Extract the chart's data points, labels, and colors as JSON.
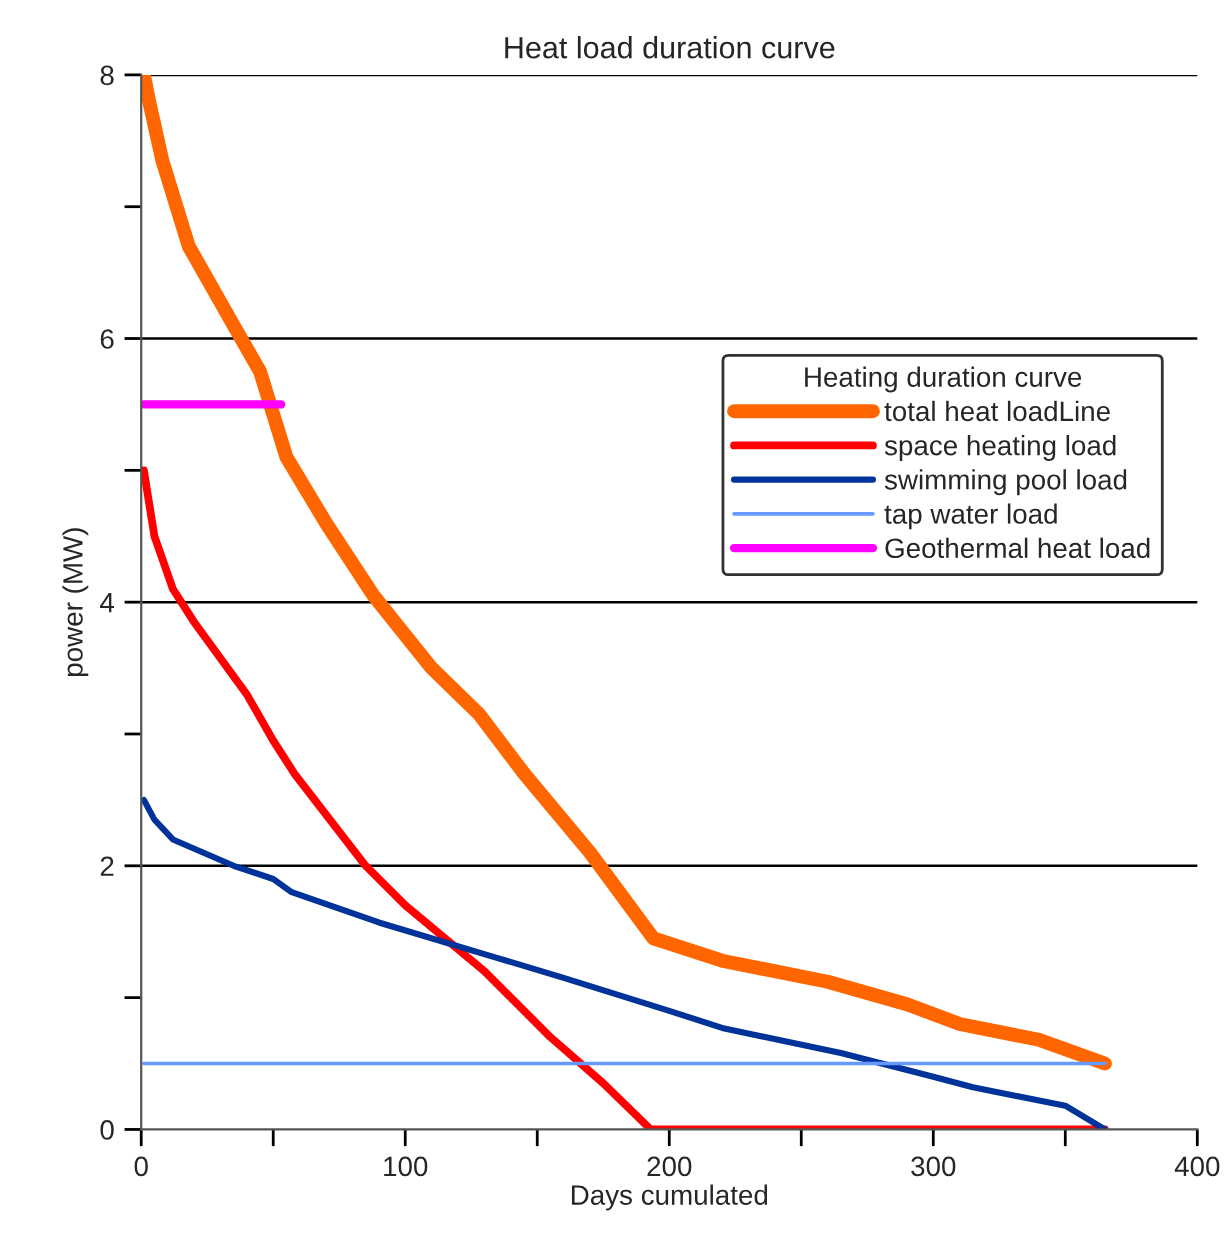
{
  "chart_data": {
    "type": "line",
    "title": "Heat load duration curve",
    "xlabel": "Days cumulated",
    "ylabel": "power (MW)",
    "xlim": [
      0,
      400
    ],
    "xticks": [
      0,
      {
        "value": 50,
        "label": null
      },
      100,
      {
        "value": 150,
        "label": null
      },
      200,
      {
        "value": 250,
        "label": null
      },
      300,
      {
        "value": 350,
        "label": null
      },
      400
    ],
    "ylim": [
      0,
      8
    ],
    "yticks": [
      0,
      {
        "value": 1,
        "label": null
      },
      2,
      {
        "value": 3,
        "label": null
      },
      4,
      {
        "value": 5,
        "label": null
      },
      6,
      {
        "value": 7,
        "label": null
      },
      8
    ],
    "grid": "y",
    "legend": "right",
    "legend_title": "Heating duration curve",
    "marker": "none",
    "line_style": "solid",
    "series": [
      {
        "name": "total heat loadLine",
        "color": "#ff6600",
        "x": [
          1,
          3,
          8,
          18,
          35,
          45,
          55,
          70,
          88,
          110,
          128,
          145,
          170,
          194,
          220,
          260,
          290,
          310,
          340,
          365
        ],
        "values": [
          8.0,
          7.8,
          7.35,
          6.7,
          6.1,
          5.75,
          5.1,
          4.6,
          4.05,
          3.5,
          3.15,
          2.7,
          2.1,
          1.45,
          1.28,
          1.12,
          0.95,
          0.8,
          0.68,
          0.5
        ]
      },
      {
        "name": "space heating load",
        "color": "#ff0000",
        "x": [
          1,
          5,
          12,
          20,
          40,
          50,
          58,
          85,
          100,
          130,
          155,
          175,
          193,
          365
        ],
        "values": [
          5.0,
          4.5,
          4.1,
          3.85,
          3.3,
          2.95,
          2.7,
          2.0,
          1.7,
          1.2,
          0.7,
          0.35,
          0.0,
          0.0
        ]
      },
      {
        "name": "swimming pool load",
        "color": "#003399",
        "x": [
          1,
          5,
          12,
          35,
          50,
          57,
          90,
          135,
          160,
          200,
          220,
          265,
          300,
          315,
          350,
          365
        ],
        "values": [
          2.5,
          2.35,
          2.2,
          2.0,
          1.9,
          1.8,
          1.57,
          1.3,
          1.15,
          0.9,
          0.77,
          0.58,
          0.4,
          0.32,
          0.18,
          0.0
        ]
      },
      {
        "name": "tap water load",
        "color": "#6699ff",
        "x": [
          1,
          365
        ],
        "values": [
          0.5,
          0.5
        ]
      },
      {
        "name": "Geothermal heat load",
        "color": "#ff00ff",
        "x": [
          1,
          53
        ],
        "values": [
          5.5,
          5.5
        ]
      }
    ]
  }
}
